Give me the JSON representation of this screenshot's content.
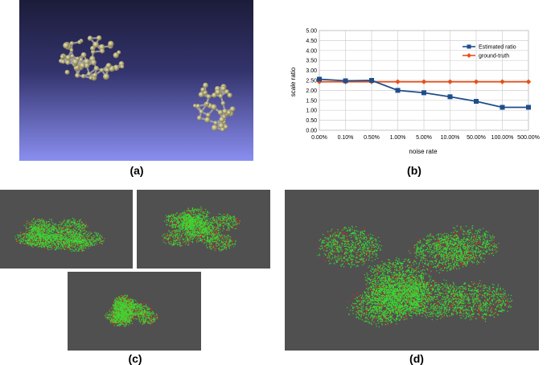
{
  "captions": {
    "a": "(a)",
    "b": "(b)",
    "c": "(c)",
    "d": "(d)"
  },
  "chart_data": {
    "type": "line",
    "categories": [
      "0.00%",
      "0.10%",
      "0.50%",
      "1.00%",
      "5.00%",
      "10.00%",
      "50.00%",
      "100.00%",
      "500.00%"
    ],
    "series": [
      {
        "name": "Estimated ratio",
        "color": "#1f4e8c",
        "marker": "square",
        "values": [
          2.56,
          2.48,
          2.5,
          2.0,
          1.88,
          1.68,
          1.45,
          1.15,
          1.15
        ]
      },
      {
        "name": "ground-truth",
        "color": "#e8501a",
        "marker": "diamond",
        "values": [
          2.43,
          2.43,
          2.43,
          2.43,
          2.43,
          2.43,
          2.43,
          2.43,
          2.43
        ]
      }
    ],
    "xlabel": "noise rate",
    "ylabel": "scale ratio",
    "ylim": [
      0,
      5
    ],
    "yticks": [
      "0.00",
      "0.50",
      "1.00",
      "1.50",
      "2.00",
      "2.50",
      "3.00",
      "3.50",
      "4.00",
      "4.50",
      "5.00"
    ],
    "grid": true,
    "legend_position": "right"
  },
  "colors": {
    "viewer_bg_top": "#1c1c3a",
    "viewer_bg_bottom": "#8a8ef0",
    "cloud_bg": "#505050",
    "cloud_green": "#33e633",
    "cloud_red": "#e62020"
  }
}
